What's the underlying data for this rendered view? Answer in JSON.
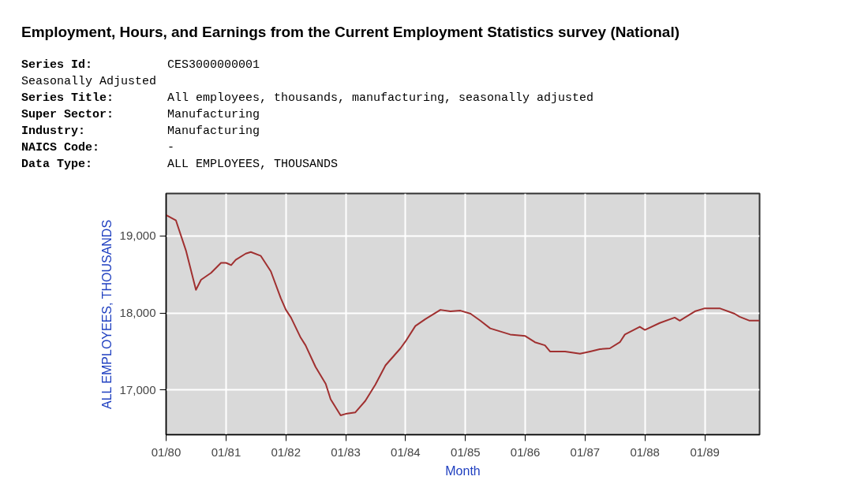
{
  "chart_data": {
    "type": "line",
    "title": "Employment, Hours, and Earnings from the Current Employment Statistics survey (National)",
    "annotations": [
      "Series Id:",
      "CES3000000001",
      "Seasonally Adjusted",
      "Series Title:",
      "All employees, thousands, manufacturing, seasonally adjusted",
      "Super Sector:",
      "Manufacturing",
      "Industry:",
      "Manufacturing",
      "NAICS Code:",
      "-",
      "Data Type:",
      "ALL EMPLOYEES, THOUSANDS"
    ],
    "xlabel": "Month",
    "ylabel": "ALL EMPLOYEES, THOUSANDS",
    "x": [
      "1980-01",
      "1980-03",
      "1980-05",
      "1980-07",
      "1980-08",
      "1980-10",
      "1980-12",
      "1981-01",
      "1981-02",
      "1981-03",
      "1981-05",
      "1981-06",
      "1981-08",
      "1981-10",
      "1981-12",
      "1982-01",
      "1982-02",
      "1982-04",
      "1982-05",
      "1982-07",
      "1982-09",
      "1982-10",
      "1982-12",
      "1983-01",
      "1983-03",
      "1983-05",
      "1983-07",
      "1983-09",
      "1983-12",
      "1984-01",
      "1984-03",
      "1984-05",
      "1984-08",
      "1984-10",
      "1984-12",
      "1985-02",
      "1985-04",
      "1985-06",
      "1985-10",
      "1986-01",
      "1986-03",
      "1986-05",
      "1986-06",
      "1986-09",
      "1986-12",
      "1987-02",
      "1987-04",
      "1987-06",
      "1987-08",
      "1987-09",
      "1987-12",
      "1988-01",
      "1988-04",
      "1988-07",
      "1988-08",
      "1988-09",
      "1988-11",
      "1989-01",
      "1989-04",
      "1989-07",
      "1989-08",
      "1989-10",
      "1989-12"
    ],
    "series": [
      {
        "color": "#a03030",
        "values": [
          19270,
          19200,
          18810,
          18300,
          18430,
          18520,
          18650,
          18650,
          18620,
          18690,
          18770,
          18790,
          18740,
          18540,
          18190,
          18040,
          17940,
          17680,
          17580,
          17300,
          17080,
          16880,
          16670,
          16690,
          16710,
          16860,
          17070,
          17320,
          17540,
          17630,
          17830,
          17920,
          18040,
          18020,
          18030,
          17990,
          17900,
          17800,
          17720,
          17700,
          17620,
          17580,
          17500,
          17500,
          17470,
          17500,
          17530,
          17540,
          17620,
          17720,
          17820,
          17780,
          17870,
          17940,
          17900,
          17940,
          18020,
          18060,
          18060,
          17990,
          17950,
          17900,
          17900
        ]
      }
    ],
    "xlim": [
      "1980-01",
      "1989-12"
    ],
    "ylim": [
      16420,
      19550
    ],
    "xticks": [
      {
        "value": "1980-01",
        "label": "01/80"
      },
      {
        "value": "1981-01",
        "label": "01/81"
      },
      {
        "value": "1982-01",
        "label": "01/82"
      },
      {
        "value": "1983-01",
        "label": "01/83"
      },
      {
        "value": "1984-01",
        "label": "01/84"
      },
      {
        "value": "1985-01",
        "label": "01/85"
      },
      {
        "value": "1986-01",
        "label": "01/86"
      },
      {
        "value": "1987-01",
        "label": "01/87"
      },
      {
        "value": "1988-01",
        "label": "01/88"
      },
      {
        "value": "1989-01",
        "label": "01/89"
      }
    ],
    "yticks": [
      {
        "value": 17000,
        "label": "17,000"
      },
      {
        "value": 18000,
        "label": "18,000"
      },
      {
        "value": 19000,
        "label": "19,000"
      }
    ],
    "grid": true,
    "line_style": "solid"
  }
}
